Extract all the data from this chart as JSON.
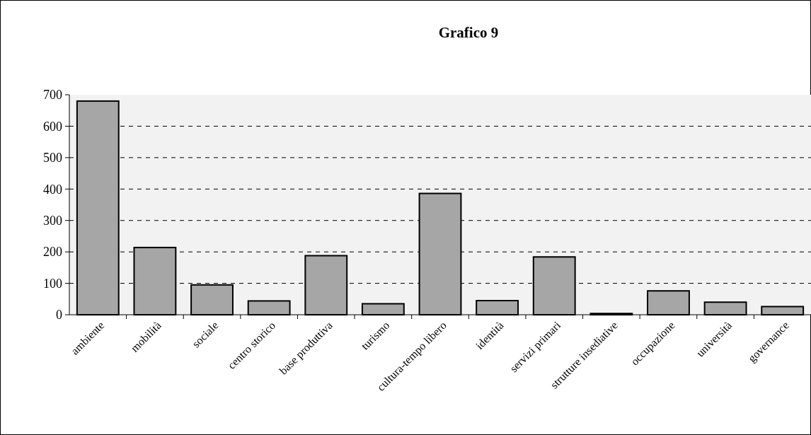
{
  "chart_data": {
    "type": "bar",
    "title": "Grafico 9",
    "categories": [
      "ambiente",
      "mobilità",
      "sociale",
      "centro storico",
      "base produttiva",
      "turismo",
      "cultura-tempo libero",
      "identità",
      "servizi primari",
      "strutture insediative",
      "occupazione",
      "università",
      "governance"
    ],
    "values": [
      680,
      214,
      95,
      44,
      188,
      35,
      386,
      45,
      184,
      4,
      76,
      40,
      26
    ],
    "color": "#a6a6a6",
    "ylim": [
      0,
      700
    ],
    "yticks": [
      0,
      100,
      200,
      300,
      400,
      500,
      600,
      700
    ],
    "grid": "y"
  }
}
